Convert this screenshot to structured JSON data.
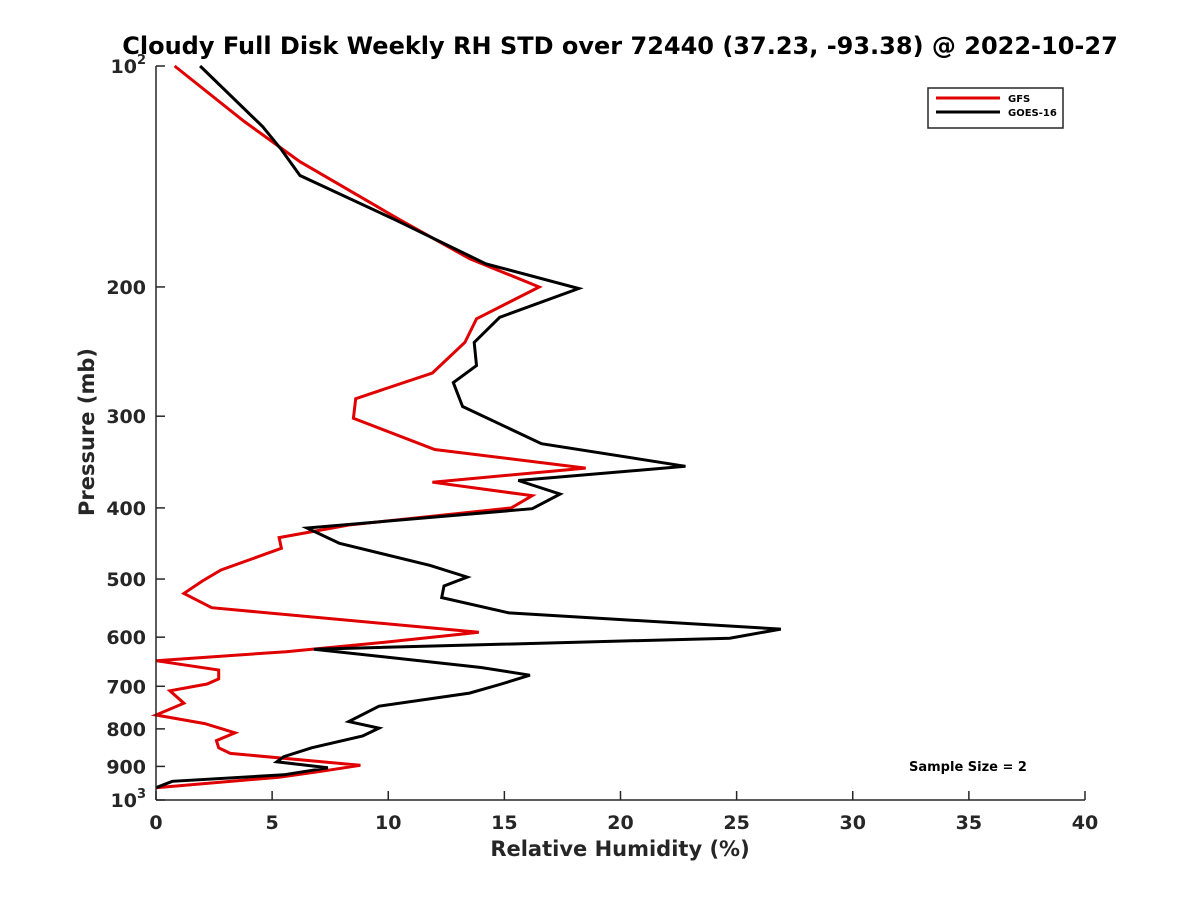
{
  "chart_data": {
    "type": "line",
    "title": "Cloudy Full Disk Weekly RH STD over 72440 (37.23, -93.38) @ 2022-10-27",
    "xlabel": "Relative Humidity (%)",
    "ylabel": "Pressure (mb)",
    "xlim": [
      0,
      40
    ],
    "ylim": [
      100,
      1000
    ],
    "y_scale": "log",
    "y_reversed": true,
    "x_ticks": [
      0,
      5,
      10,
      15,
      20,
      25,
      30,
      35,
      40
    ],
    "x_tick_labels": [
      "0",
      "5",
      "10",
      "15",
      "20",
      "25",
      "30",
      "35",
      "40"
    ],
    "y_ticks": [
      {
        "value": 100,
        "base": "10",
        "exp": "2"
      },
      {
        "value": 200,
        "label": "200"
      },
      {
        "value": 300,
        "label": "300"
      },
      {
        "value": 400,
        "label": "400"
      },
      {
        "value": 500,
        "label": "500"
      },
      {
        "value": 600,
        "label": "600"
      },
      {
        "value": 700,
        "label": "700"
      },
      {
        "value": 800,
        "label": "800"
      },
      {
        "value": 900,
        "label": "900"
      },
      {
        "value": 1000,
        "base": "10",
        "exp": "3"
      }
    ],
    "grid": false,
    "legend_position": "top-right",
    "annotation": "Sample Size = 2",
    "series": [
      {
        "name": "GFS",
        "color": "#e00000",
        "points": [
          [
            0.8,
            100
          ],
          [
            3.8,
            119
          ],
          [
            6.2,
            135
          ],
          [
            10.5,
            162
          ],
          [
            13.5,
            183
          ],
          [
            16.5,
            200
          ],
          [
            13.8,
            221
          ],
          [
            13.3,
            238
          ],
          [
            11.9,
            262
          ],
          [
            8.6,
            284
          ],
          [
            8.5,
            302
          ],
          [
            12.0,
            333
          ],
          [
            18.5,
            353
          ],
          [
            11.9,
            369
          ],
          [
            16.2,
            385
          ],
          [
            15.3,
            400
          ],
          [
            8.3,
            422
          ],
          [
            5.3,
            439
          ],
          [
            5.4,
            454
          ],
          [
            2.8,
            486
          ],
          [
            2.0,
            503
          ],
          [
            1.2,
            523
          ],
          [
            2.4,
            547
          ],
          [
            13.9,
            591
          ],
          [
            10.0,
            609
          ],
          [
            5.6,
            628
          ],
          [
            0.0,
            646
          ],
          [
            2.7,
            665
          ],
          [
            2.7,
            684
          ],
          [
            2.2,
            695
          ],
          [
            0.6,
            710
          ],
          [
            1.2,
            738
          ],
          [
            0.0,
            766
          ],
          [
            2.1,
            787
          ],
          [
            3.4,
            810
          ],
          [
            2.6,
            830
          ],
          [
            2.7,
            849
          ],
          [
            3.2,
            864
          ],
          [
            8.8,
            897
          ],
          [
            7.0,
            915
          ],
          [
            5.3,
            931
          ],
          [
            0.0,
            962
          ]
        ]
      },
      {
        "name": "GOES-16",
        "color": "#000000",
        "points": [
          [
            1.9,
            100
          ],
          [
            4.6,
            121
          ],
          [
            5.4,
            130
          ],
          [
            6.2,
            141
          ],
          [
            10.3,
            162
          ],
          [
            14.2,
            186
          ],
          [
            18.2,
            201
          ],
          [
            14.8,
            220
          ],
          [
            13.7,
            238
          ],
          [
            13.8,
            256
          ],
          [
            12.8,
            270
          ],
          [
            13.2,
            291
          ],
          [
            16.6,
            327
          ],
          [
            22.8,
            351
          ],
          [
            15.6,
            367
          ],
          [
            17.4,
            383
          ],
          [
            16.2,
            401
          ],
          [
            6.5,
            426
          ],
          [
            7.9,
            447
          ],
          [
            11.8,
            479
          ],
          [
            13.4,
            497
          ],
          [
            12.4,
            511
          ],
          [
            12.3,
            530
          ],
          [
            15.2,
            556
          ],
          [
            26.9,
            585
          ],
          [
            24.7,
            602
          ],
          [
            6.8,
            623
          ],
          [
            14.0,
            660
          ],
          [
            16.1,
            676
          ],
          [
            14.8,
            696
          ],
          [
            13.5,
            715
          ],
          [
            9.6,
            745
          ],
          [
            8.3,
            782
          ],
          [
            9.6,
            798
          ],
          [
            8.9,
            818
          ],
          [
            6.7,
            849
          ],
          [
            5.5,
            873
          ],
          [
            5.2,
            887
          ],
          [
            7.4,
            904
          ],
          [
            5.5,
            924
          ],
          [
            0.7,
            943
          ],
          [
            0.0,
            962
          ]
        ]
      }
    ]
  }
}
